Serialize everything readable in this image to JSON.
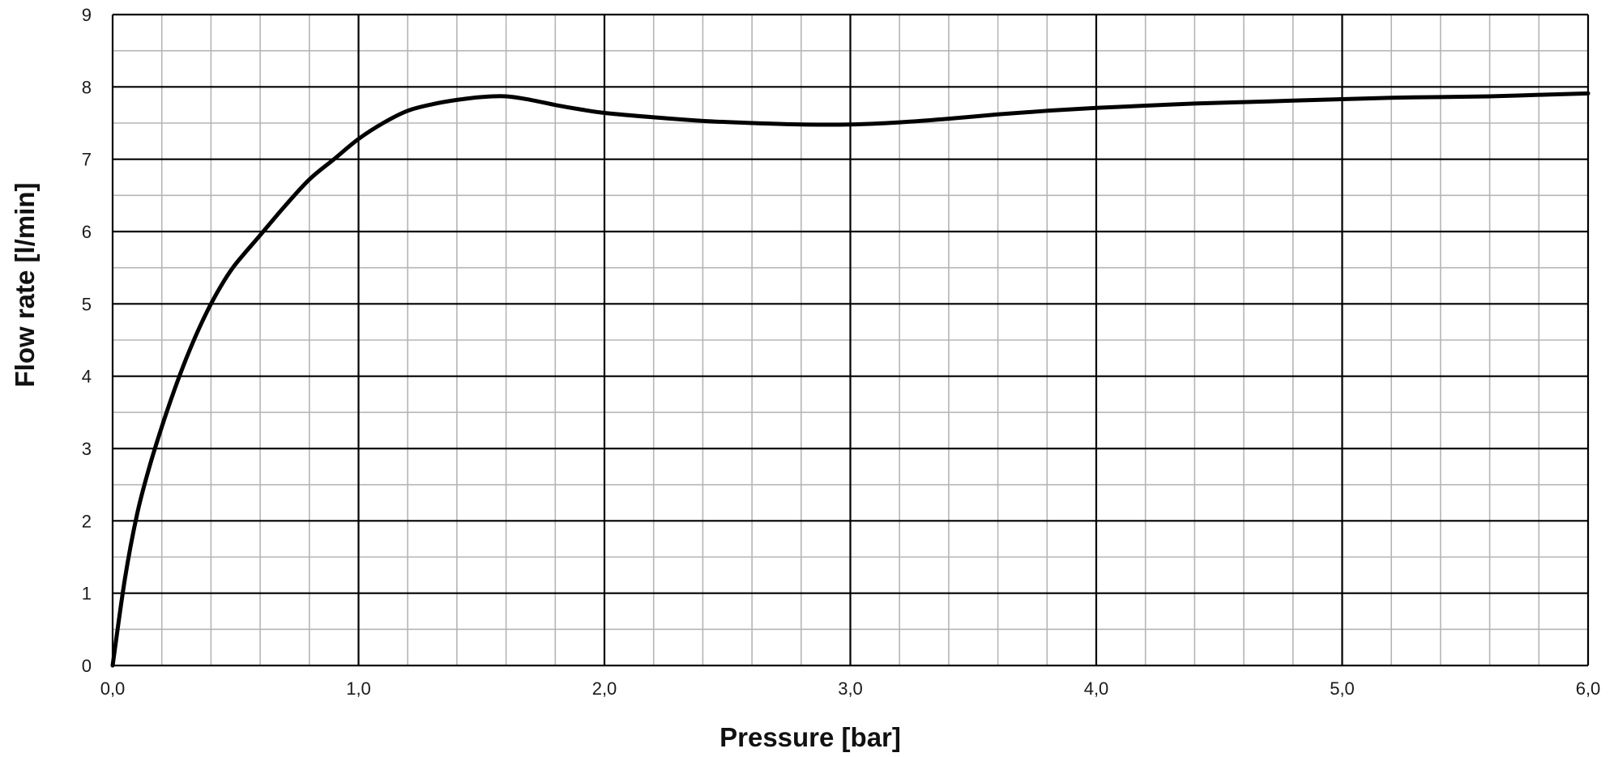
{
  "chart_data": {
    "type": "line",
    "title": "",
    "xlabel": "Pressure [bar]",
    "ylabel": "Flow rate [l/min]",
    "xlim": [
      0,
      6
    ],
    "ylim": [
      0,
      9
    ],
    "x_ticks": [
      "0,0",
      "1,0",
      "2,0",
      "3,0",
      "4,0",
      "5,0",
      "6,0"
    ],
    "y_ticks": [
      "0",
      "1",
      "2",
      "3",
      "4",
      "5",
      "6",
      "7",
      "8",
      "9"
    ],
    "grid": {
      "major": true,
      "minor": true,
      "x_minor_step": 0.2,
      "y_minor_step": 0.5
    },
    "colors": {
      "line": "#000000",
      "major_grid": "#000000",
      "minor_grid": "#b5b5b5"
    },
    "series": [
      {
        "x": [
          0,
          0.05,
          0.1,
          0.15,
          0.2,
          0.25,
          0.3,
          0.35,
          0.4,
          0.45,
          0.5,
          0.6,
          0.7,
          0.8,
          0.9,
          1.0,
          1.1,
          1.2,
          1.3,
          1.4,
          1.5,
          1.6,
          1.7,
          1.8,
          1.9,
          2.0,
          2.2,
          2.4,
          2.6,
          2.8,
          3.0,
          3.2,
          3.4,
          3.6,
          3.8,
          4.0,
          4.2,
          4.4,
          4.6,
          4.8,
          5.0,
          5.2,
          5.4,
          5.6,
          5.8,
          6.0
        ],
        "y": [
          0,
          1.2,
          2.1,
          2.75,
          3.3,
          3.8,
          4.25,
          4.65,
          5.0,
          5.3,
          5.55,
          5.95,
          6.35,
          6.72,
          7.0,
          7.28,
          7.5,
          7.67,
          7.76,
          7.82,
          7.86,
          7.87,
          7.82,
          7.75,
          7.69,
          7.64,
          7.58,
          7.53,
          7.5,
          7.48,
          7.48,
          7.51,
          7.56,
          7.62,
          7.67,
          7.71,
          7.74,
          7.77,
          7.79,
          7.81,
          7.83,
          7.85,
          7.86,
          7.87,
          7.89,
          7.91
        ]
      }
    ]
  }
}
